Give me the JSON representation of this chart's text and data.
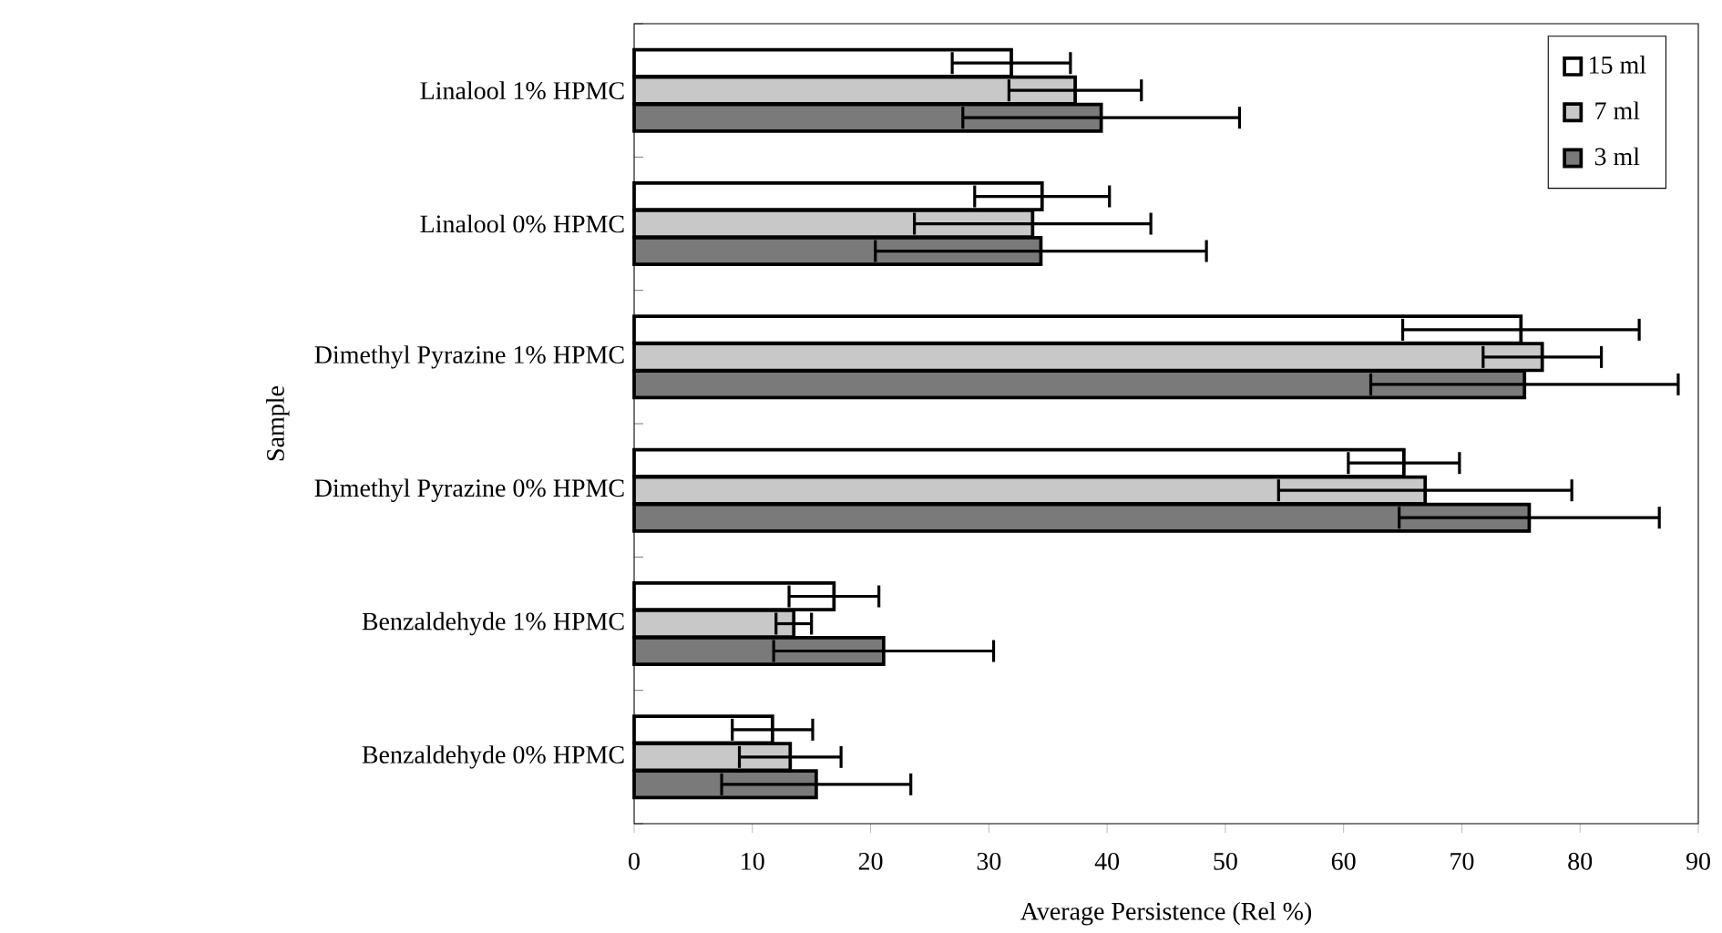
{
  "chart_data": {
    "type": "bar",
    "orientation": "horizontal",
    "xlabel": "Average Persistence (Rel %)",
    "ylabel": "Sample",
    "categories": [
      "Linalool 1% HPMC",
      "Linalool 0% HPMC",
      "Dimethyl Pyrazine 1% HPMC",
      "Dimethyl Pyrazine 0% HPMC",
      "Benzaldehyde 1% HPMC",
      "Benzaldehyde 0% HPMC"
    ],
    "series": [
      {
        "name": "15 ml",
        "color": "#ffffff",
        "values": [
          31.9,
          34.5,
          75.0,
          65.1,
          16.9,
          11.7
        ],
        "errors": [
          5,
          5.7,
          10,
          4.7,
          3.8,
          3.4
        ]
      },
      {
        "name": "7 ml",
        "color": "#c8c8c8",
        "values": [
          37.3,
          33.7,
          76.8,
          66.9,
          13.5,
          13.2
        ],
        "errors": [
          5.6,
          10,
          5,
          12.4,
          1.5,
          4.3
        ]
      },
      {
        "name": "3 ml",
        "color": "#7a7a7a",
        "values": [
          39.5,
          34.4,
          75.3,
          75.7,
          21.1,
          15.4
        ],
        "errors": [
          11.7,
          14,
          13,
          11,
          9.3,
          8
        ]
      }
    ],
    "xlim": [
      0,
      90
    ],
    "xticks": [
      0,
      10,
      20,
      30,
      40,
      50,
      60,
      70,
      80,
      90
    ],
    "legend": "top right",
    "grid": false
  }
}
